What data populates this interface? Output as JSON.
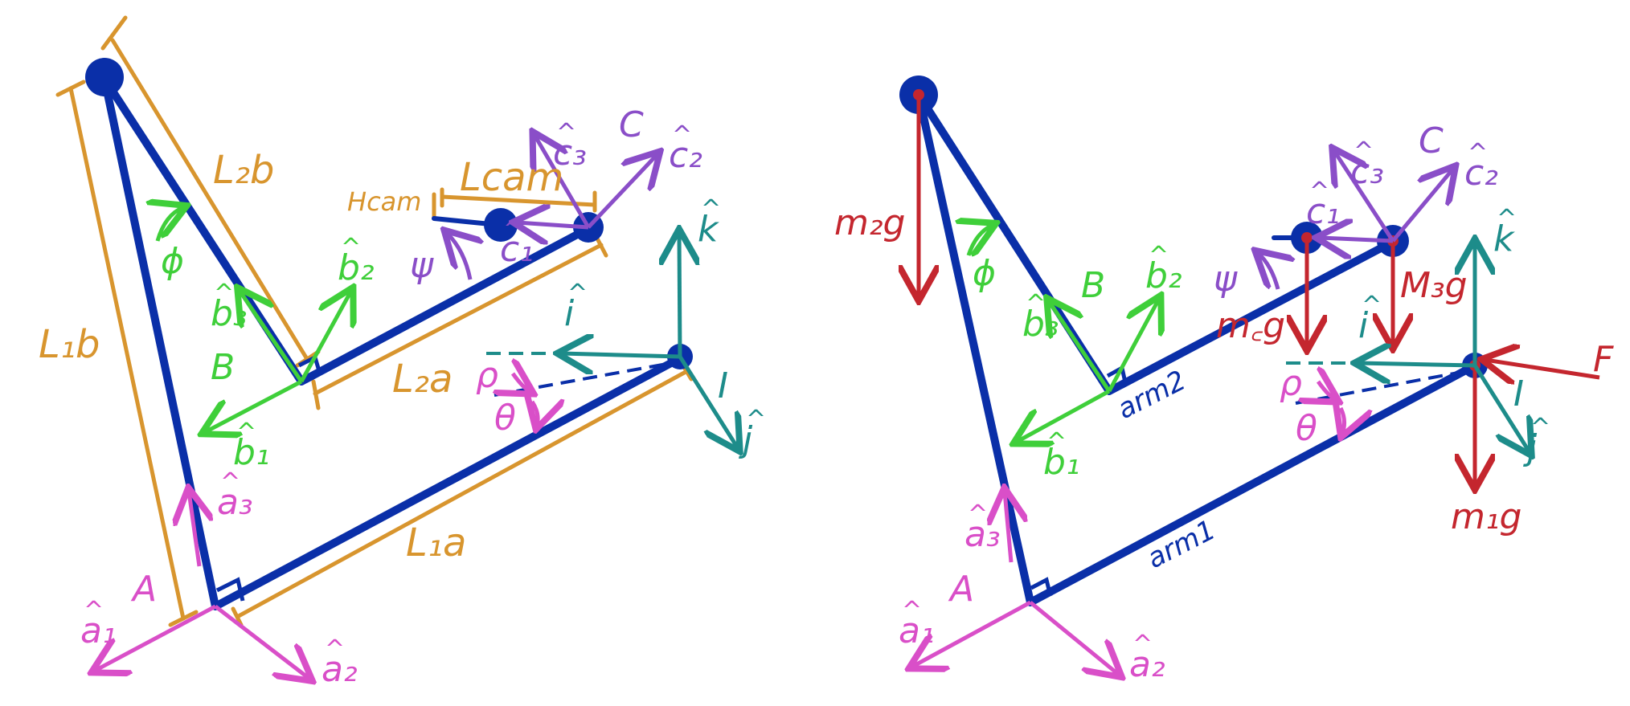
{
  "left": {
    "lengths": {
      "L1b": "L₁b",
      "L2b": "L₂b",
      "L2a": "L₂a",
      "L1a": "L₁a",
      "Lcam": "Lcam",
      "Hcam": "Hcam"
    },
    "frames": {
      "A": "A",
      "B": "B",
      "C": "C",
      "I": "I"
    },
    "vectors": {
      "a1": "a₁",
      "a2": "a₂",
      "a3": "a₃",
      "b1": "b₁",
      "b2": "b₂",
      "b3": "b₃",
      "c1": "c₁",
      "c2": "c₂",
      "c3": "c₃",
      "i": "i",
      "j": "j",
      "k": "k"
    },
    "angles": {
      "phi": "ϕ",
      "psi": "ψ",
      "rho": "ρ",
      "theta": "θ"
    }
  },
  "right": {
    "arms": {
      "arm1": "arm1",
      "arm2": "arm2"
    },
    "forces": {
      "m2g": "m₂g",
      "mcg": "m꜀g",
      "m3g": "M₃g",
      "m1g": "m₁g",
      "F": "F"
    },
    "frames": {
      "A": "A",
      "B": "B",
      "C": "C",
      "I": "I"
    },
    "vectors": {
      "a1": "a₁",
      "a2": "a₂",
      "a3": "a₃",
      "b1": "b₁",
      "b2": "b₂",
      "b3": "b₃",
      "c1": "c₁",
      "c2": "c₂",
      "c3": "c₃",
      "i": "i",
      "j": "j",
      "k": "k"
    },
    "angles": {
      "phi": "ϕ",
      "psi": "ψ",
      "rho": "ρ",
      "theta": "θ"
    }
  },
  "colors": {
    "arm": "#0a2fa8",
    "length": "#d8952e",
    "frameA": "#d94fc8",
    "frameB": "#3fcf3a",
    "frameC": "#8a4ec8",
    "frameI": "#1d8c8a",
    "force": "#c4262e"
  }
}
